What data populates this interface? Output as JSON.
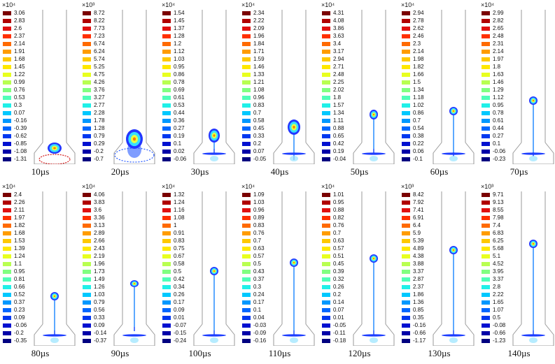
{
  "panels": [
    {
      "time": "10µs",
      "exp": "×10⁴",
      "ticks": [
        "3.06",
        "2.83",
        "2.6",
        "2.37",
        "2.14",
        "1.91",
        "1.68",
        "1.45",
        "1.22",
        "0.99",
        "0.76",
        "0.53",
        "0.3",
        "0.07",
        "-0.16",
        "-0.39",
        "-0.62",
        "-0.85",
        "-1.08",
        "-1.31"
      ]
    },
    {
      "time": "20µs",
      "exp": "×10³",
      "ticks": [
        "8.72",
        "8.22",
        "7.73",
        "7.23",
        "6.74",
        "6.24",
        "5.74",
        "5.25",
        "4.75",
        "4.26",
        "3.76",
        "3.27",
        "2.77",
        "2.28",
        "1.78",
        "1.28",
        "0.79",
        "0.29",
        "-0.2",
        "-0.7"
      ]
    },
    {
      "time": "30µs",
      "exp": "×10⁴",
      "ticks": [
        "1.54",
        "1.45",
        "1.37",
        "1.28",
        "1.2",
        "1.12",
        "1.03",
        "0.95",
        "0.86",
        "0.78",
        "0.69",
        "0.61",
        "0.53",
        "0.44",
        "0.36",
        "0.27",
        "0.19",
        "0.1",
        "0.02",
        "-0.06"
      ]
    },
    {
      "time": "40µs",
      "exp": "×10⁴",
      "ticks": [
        "2.34",
        "2.22",
        "2.09",
        "1.96",
        "1.84",
        "1.71",
        "1.59",
        "1.46",
        "1.33",
        "1.21",
        "1.08",
        "0.96",
        "0.83",
        "0.7",
        "0.58",
        "0.45",
        "0.33",
        "0.2",
        "0.07",
        "-0.05"
      ]
    },
    {
      "time": "50µs",
      "exp": "×10⁴",
      "ticks": [
        "4.31",
        "4.08",
        "3.86",
        "3.63",
        "3.4",
        "3.17",
        "2.94",
        "2.71",
        "2.48",
        "2.25",
        "2.02",
        "1.8",
        "1.57",
        "1.34",
        "1.11",
        "0.88",
        "0.65",
        "0.42",
        "0.19",
        "-0.04"
      ]
    },
    {
      "time": "60µs",
      "exp": "×10⁴",
      "ticks": [
        "2.94",
        "2.78",
        "2.62",
        "2.46",
        "2.3",
        "2.14",
        "1.98",
        "1.82",
        "1.66",
        "1.5",
        "1.34",
        "1.18",
        "1.02",
        "0.86",
        "0.7",
        "0.54",
        "0.38",
        "0.22",
        "0.06",
        "-0.1"
      ]
    },
    {
      "time": "70µs",
      "exp": "×10⁴",
      "ticks": [
        "2.99",
        "2.82",
        "2.65",
        "2.48",
        "2.31",
        "2.14",
        "1.97",
        "1.8",
        "1.63",
        "1.46",
        "1.29",
        "1.12",
        "0.95",
        "0.78",
        "0.61",
        "0.44",
        "0.27",
        "0.1",
        "-0.06",
        "-0.23"
      ]
    },
    {
      "time": "80µs",
      "exp": "×10⁴",
      "ticks": [
        "2.4",
        "2.26",
        "2.11",
        "1.97",
        "1.82",
        "1.68",
        "1.53",
        "1.39",
        "1.24",
        "1.1",
        "0.95",
        "0.81",
        "0.66",
        "0.52",
        "0.37",
        "0.23",
        "0.09",
        "-0.06",
        "-0.2",
        "-0.35"
      ]
    },
    {
      "time": "90µs",
      "exp": "×10⁴",
      "ticks": [
        "4.06",
        "3.83",
        "3.6",
        "3.36",
        "3.13",
        "2.89",
        "2.66",
        "2.43",
        "2.19",
        "1.96",
        "1.73",
        "1.49",
        "1.26",
        "1.03",
        "0.79",
        "0.56",
        "0.33",
        "0.09",
        "-0.14",
        "-0.37"
      ]
    },
    {
      "time": "100µs",
      "exp": "×10⁴",
      "ticks": [
        "1.32",
        "1.24",
        "1.16",
        "1.08",
        "1",
        "0.91",
        "0.83",
        "0.75",
        "0.67",
        "0.58",
        "0.5",
        "0.42",
        "0.34",
        "0.26",
        "0.17",
        "0.09",
        "0.01",
        "-0.07",
        "-0.15",
        "-0.24"
      ]
    },
    {
      "time": "110µs",
      "exp": "×10⁴",
      "ticks": [
        "1.09",
        "1.03",
        "0.96",
        "0.89",
        "0.83",
        "0.76",
        "0.7",
        "0.63",
        "0.57",
        "0.5",
        "0.43",
        "0.37",
        "0.3",
        "0.24",
        "0.17",
        "0.1",
        "0.04",
        "-0.03",
        "-0.09",
        "-0.16"
      ]
    },
    {
      "time": "120µs",
      "exp": "×10⁴",
      "ticks": [
        "1.01",
        "0.95",
        "0.88",
        "0.82",
        "0.76",
        "0.7",
        "0.63",
        "0.57",
        "0.51",
        "0.45",
        "0.39",
        "0.32",
        "0.26",
        "0.2",
        "0.14",
        "0.07",
        "0.01",
        "-0.05",
        "-0.11",
        "-0.18"
      ]
    },
    {
      "time": "130µs",
      "exp": "×10³",
      "ticks": [
        "8.42",
        "7.92",
        "7.41",
        "6.91",
        "6.4",
        "5.9",
        "5.39",
        "4.89",
        "4.38",
        "3.88",
        "3.37",
        "2.87",
        "2.37",
        "1.86",
        "1.36",
        "0.85",
        "0.35",
        "-0.16",
        "-0.66",
        "-1.17"
      ]
    },
    {
      "time": "140µs",
      "exp": "×10³",
      "ticks": [
        "9.71",
        "9.13",
        "8.55",
        "7.98",
        "7.4",
        "6.83",
        "6.25",
        "5.68",
        "5.1",
        "4.52",
        "3.95",
        "3.37",
        "2.8",
        "2.22",
        "1.65",
        "1.07",
        "0.5",
        "-0.08",
        "-0.66",
        "-1.23"
      ]
    }
  ],
  "colormap": [
    "#7a0000",
    "#b00000",
    "#e01010",
    "#ff3000",
    "#ff6a00",
    "#ff9c00",
    "#ffc800",
    "#ffe800",
    "#e8ff20",
    "#b8ff50",
    "#80ff80",
    "#50ffb8",
    "#20f0e8",
    "#00c8ff",
    "#0098ff",
    "#0068ff",
    "#0038f0",
    "#0010d0",
    "#0000a8",
    "#000080"
  ]
}
